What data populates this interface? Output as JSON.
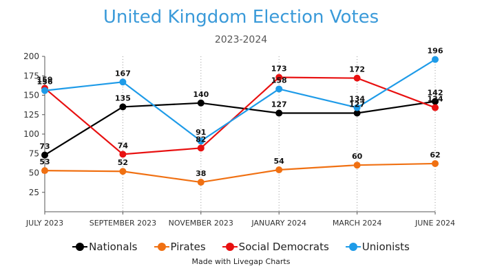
{
  "chart_data": {
    "type": "line",
    "title": "United Kingdom Election Votes",
    "subtitle": "2023-2024",
    "categories": [
      "JULY 2023",
      "SEPTEMBER 2023",
      "NOVEMBER 2023",
      "JANUARY 2024",
      "MARCH 2024",
      "JUNE 2024"
    ],
    "yticks": [
      25,
      50,
      75,
      100,
      125,
      150,
      175,
      200
    ],
    "ylim": [
      0,
      200
    ],
    "grid": "vertical dotted",
    "legend_position": "bottom",
    "series": [
      {
        "name": "Nationals",
        "color": "#000000",
        "values": [
          73,
          135,
          140,
          127,
          127,
          142
        ]
      },
      {
        "name": "Pirates",
        "color": "#f07012",
        "values": [
          53,
          52,
          38,
          54,
          60,
          62
        ]
      },
      {
        "name": "Social Democrats",
        "color": "#e81010",
        "values": [
          159,
          74,
          82,
          173,
          172,
          134
        ]
      },
      {
        "name": "Unionists",
        "color": "#1e9be8",
        "values": [
          156,
          167,
          91,
          158,
          134,
          196
        ]
      }
    ]
  },
  "credit": "Made with Livegap Charts"
}
